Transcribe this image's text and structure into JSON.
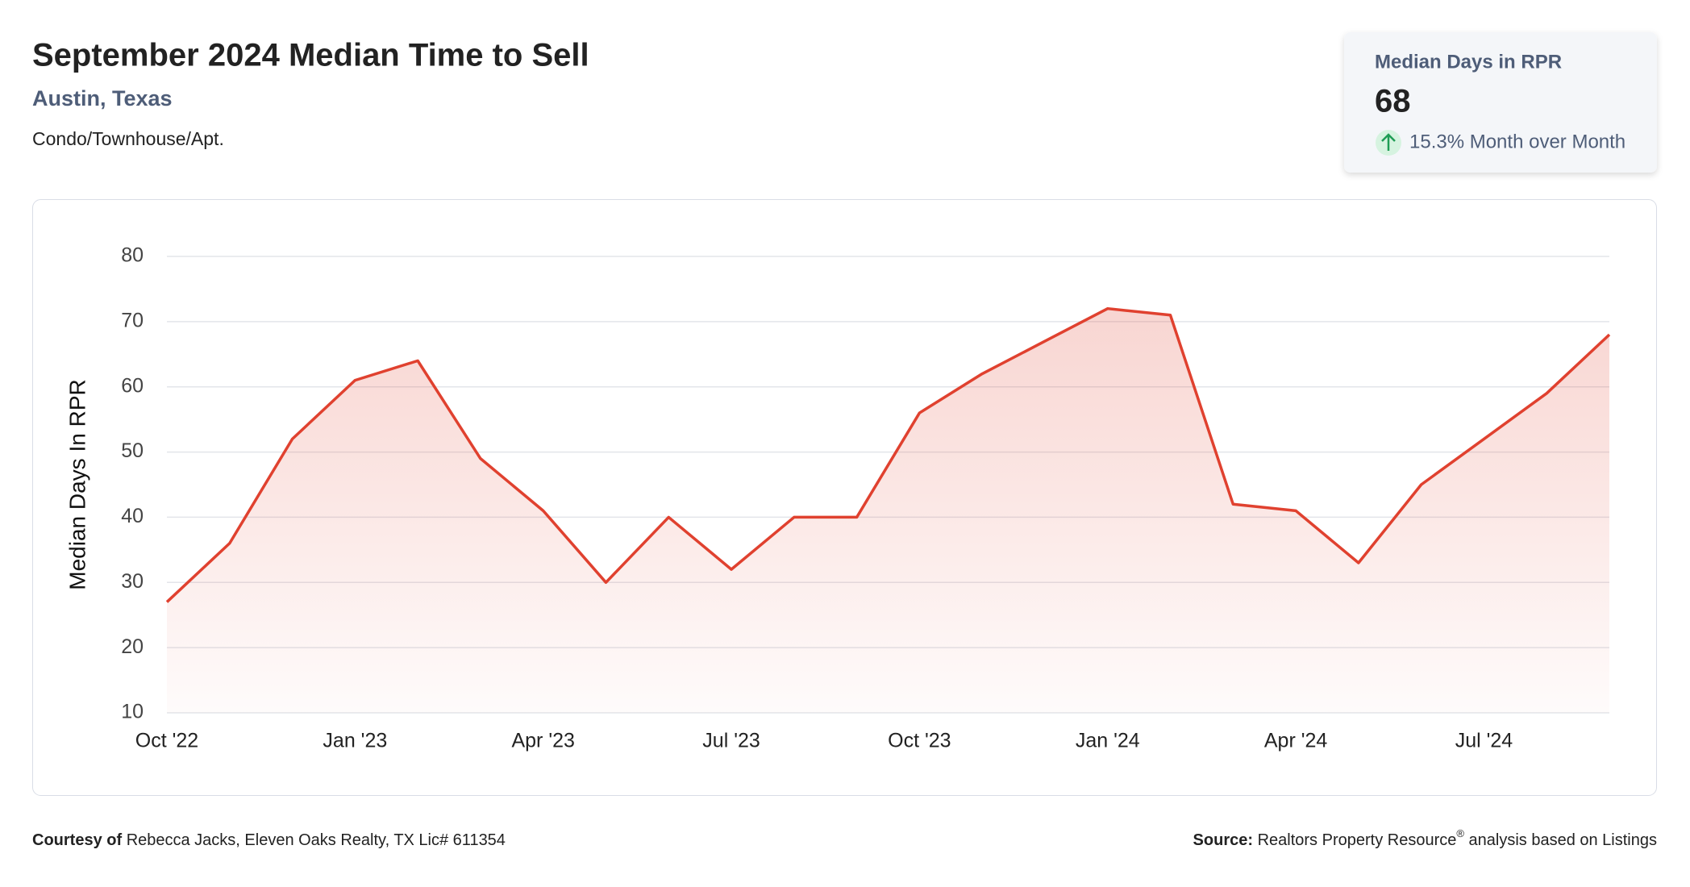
{
  "header": {
    "title": "September 2024 Median Time to Sell",
    "location": "Austin, Texas",
    "property_type": "Condo/Townhouse/Apt."
  },
  "summary_card": {
    "label": "Median Days in RPR",
    "value": "68",
    "change": "15.3% Month over Month"
  },
  "footer": {
    "courtesy_label": "Courtesy of",
    "courtesy_text": "Rebecca Jacks, Eleven Oaks Realty, TX Lic# 611354",
    "source_label": "Source:",
    "source_text": "Realtors Property Resource",
    "source_mark": "®",
    "source_tail": "analysis based on Listings"
  },
  "chart_data": {
    "type": "line",
    "y_label": "Median Days In RPR",
    "categories": [
      "Oct '22",
      null,
      null,
      "Jan '23",
      null,
      null,
      "Apr '23",
      null,
      null,
      "Jul '23",
      null,
      null,
      "Oct '23",
      null,
      null,
      "Jan '24",
      null,
      null,
      "Apr '24",
      null,
      null,
      "Jul '24",
      null,
      null
    ],
    "values": [
      27,
      36,
      52,
      61,
      64,
      49,
      41,
      30,
      40,
      32,
      40,
      40,
      56,
      62,
      67,
      72,
      71,
      42,
      41,
      33,
      45,
      52,
      59,
      68
    ],
    "color": "#e0412f",
    "ylim": [
      10,
      80
    ],
    "yticks": [
      10,
      20,
      30,
      40,
      50,
      60,
      70,
      80
    ],
    "grid": true,
    "area": true
  }
}
